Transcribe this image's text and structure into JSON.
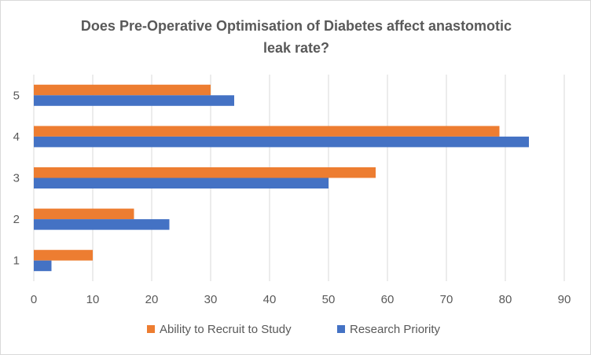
{
  "chart_data": {
    "type": "bar",
    "orientation": "horizontal",
    "title": "Does Pre-Operative Optimisation of Diabetes affect anastomotic leak rate?",
    "title_lines": [
      "Does Pre-Operative Optimisation of Diabetes affect anastomotic",
      "leak rate?"
    ],
    "categories": [
      "1",
      "2",
      "3",
      "4",
      "5"
    ],
    "series": [
      {
        "name": "Research Priority",
        "color": "#4472C4",
        "values": [
          3,
          23,
          50,
          84,
          34
        ]
      },
      {
        "name": "Ability to Recruit to Study",
        "color": "#ED7D31",
        "values": [
          10,
          17,
          58,
          79,
          30
        ]
      }
    ],
    "x_ticks": [
      "0",
      "10",
      "20",
      "30",
      "40",
      "50",
      "60",
      "70",
      "80",
      "90"
    ],
    "xlim": [
      0,
      90
    ],
    "grid": true,
    "legend_position": "bottom",
    "legend_order": [
      "Ability to Recruit to Study",
      "Research Priority"
    ]
  }
}
